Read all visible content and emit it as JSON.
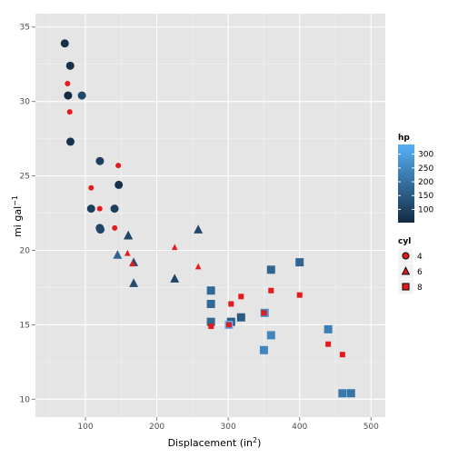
{
  "chart_data": {
    "type": "scatter",
    "xlabel": "Displacement (in",
    "xlabel_sup": "2",
    "xlabel_close": ")",
    "ylabel": "mi gal",
    "ylabel_sup": "−1",
    "xlim": [
      30,
      520
    ],
    "ylim": [
      8.8,
      35.9
    ],
    "x_ticks": [
      100,
      200,
      300,
      400,
      500
    ],
    "y_ticks": [
      10,
      15,
      20,
      25,
      30,
      35
    ],
    "grid": true,
    "background": "#E5E5E5",
    "grid_color": "#FFFFFF",
    "red_color": "#E41A1C",
    "legend_placement": "right",
    "hp_legend": {
      "title": "hp",
      "ticks": [
        100,
        150,
        200,
        250,
        300
      ],
      "range": [
        52,
        335
      ],
      "low_color": "#132B43",
      "high_color": "#56B1F7"
    },
    "cyl_legend": {
      "title": "cyl",
      "items": [
        {
          "label": "4",
          "shape": "circle"
        },
        {
          "label": "6",
          "shape": "triangle"
        },
        {
          "label": "8",
          "shape": "square"
        }
      ]
    },
    "series": [
      {
        "name": "cyl",
        "points": [
          {
            "x": 160,
            "y": 21.0,
            "cyl": "6",
            "hp": 110
          },
          {
            "x": 160,
            "y": 21.0,
            "cyl": "6",
            "hp": 110
          },
          {
            "x": 108,
            "y": 22.8,
            "cyl": "4",
            "hp": 93
          },
          {
            "x": 258,
            "y": 21.4,
            "cyl": "6",
            "hp": 110
          },
          {
            "x": 360,
            "y": 18.7,
            "cyl": "8",
            "hp": 175
          },
          {
            "x": 225,
            "y": 18.1,
            "cyl": "6",
            "hp": 105
          },
          {
            "x": 360,
            "y": 14.3,
            "cyl": "8",
            "hp": 245
          },
          {
            "x": 146.7,
            "y": 24.4,
            "cyl": "4",
            "hp": 62
          },
          {
            "x": 140.8,
            "y": 22.8,
            "cyl": "4",
            "hp": 95
          },
          {
            "x": 167.6,
            "y": 19.2,
            "cyl": "6",
            "hp": 123
          },
          {
            "x": 167.6,
            "y": 17.8,
            "cyl": "6",
            "hp": 123
          },
          {
            "x": 275.8,
            "y": 16.4,
            "cyl": "8",
            "hp": 180
          },
          {
            "x": 275.8,
            "y": 17.3,
            "cyl": "8",
            "hp": 180
          },
          {
            "x": 275.8,
            "y": 15.2,
            "cyl": "8",
            "hp": 180
          },
          {
            "x": 472,
            "y": 10.4,
            "cyl": "8",
            "hp": 205
          },
          {
            "x": 460,
            "y": 10.4,
            "cyl": "8",
            "hp": 215
          },
          {
            "x": 440,
            "y": 14.7,
            "cyl": "8",
            "hp": 230
          },
          {
            "x": 78.7,
            "y": 32.4,
            "cyl": "4",
            "hp": 66
          },
          {
            "x": 75.7,
            "y": 30.4,
            "cyl": "4",
            "hp": 52
          },
          {
            "x": 71.1,
            "y": 33.9,
            "cyl": "4",
            "hp": 65
          },
          {
            "x": 120.1,
            "y": 21.5,
            "cyl": "4",
            "hp": 97
          },
          {
            "x": 318,
            "y": 15.5,
            "cyl": "8",
            "hp": 150
          },
          {
            "x": 304,
            "y": 15.2,
            "cyl": "8",
            "hp": 150
          },
          {
            "x": 350,
            "y": 13.3,
            "cyl": "8",
            "hp": 245
          },
          {
            "x": 400,
            "y": 19.2,
            "cyl": "8",
            "hp": 175
          },
          {
            "x": 79,
            "y": 27.3,
            "cyl": "4",
            "hp": 66
          },
          {
            "x": 120.3,
            "y": 26.0,
            "cyl": "4",
            "hp": 91
          },
          {
            "x": 95.1,
            "y": 30.4,
            "cyl": "4",
            "hp": 113
          },
          {
            "x": 351,
            "y": 15.8,
            "cyl": "8",
            "hp": 264
          },
          {
            "x": 145,
            "y": 19.7,
            "cyl": "6",
            "hp": 175
          },
          {
            "x": 301,
            "y": 15.0,
            "cyl": "8",
            "hp": 335
          },
          {
            "x": 121,
            "y": 21.4,
            "cyl": "4",
            "hp": 109
          }
        ]
      },
      {
        "name": "red",
        "points": [
          {
            "x": 75,
            "y": 31.2,
            "cyl": "4"
          },
          {
            "x": 78,
            "y": 29.3,
            "cyl": "4"
          },
          {
            "x": 146,
            "y": 25.7,
            "cyl": "4"
          },
          {
            "x": 108,
            "y": 24.2,
            "cyl": "4"
          },
          {
            "x": 120,
            "y": 22.8,
            "cyl": "4"
          },
          {
            "x": 141,
            "y": 21.5,
            "cyl": "4"
          },
          {
            "x": 225,
            "y": 20.2,
            "cyl": "6"
          },
          {
            "x": 159,
            "y": 19.8,
            "cyl": "6"
          },
          {
            "x": 166,
            "y": 19.1,
            "cyl": "6"
          },
          {
            "x": 258,
            "y": 18.9,
            "cyl": "6"
          },
          {
            "x": 360,
            "y": 17.3,
            "cyl": "8"
          },
          {
            "x": 400,
            "y": 17.0,
            "cyl": "8"
          },
          {
            "x": 318,
            "y": 16.9,
            "cyl": "8"
          },
          {
            "x": 304,
            "y": 16.4,
            "cyl": "8"
          },
          {
            "x": 350,
            "y": 15.8,
            "cyl": "8"
          },
          {
            "x": 301,
            "y": 15.0,
            "cyl": "8"
          },
          {
            "x": 276,
            "y": 14.9,
            "cyl": "8"
          },
          {
            "x": 440,
            "y": 13.7,
            "cyl": "8"
          },
          {
            "x": 460,
            "y": 13.0,
            "cyl": "8"
          }
        ]
      }
    ]
  }
}
